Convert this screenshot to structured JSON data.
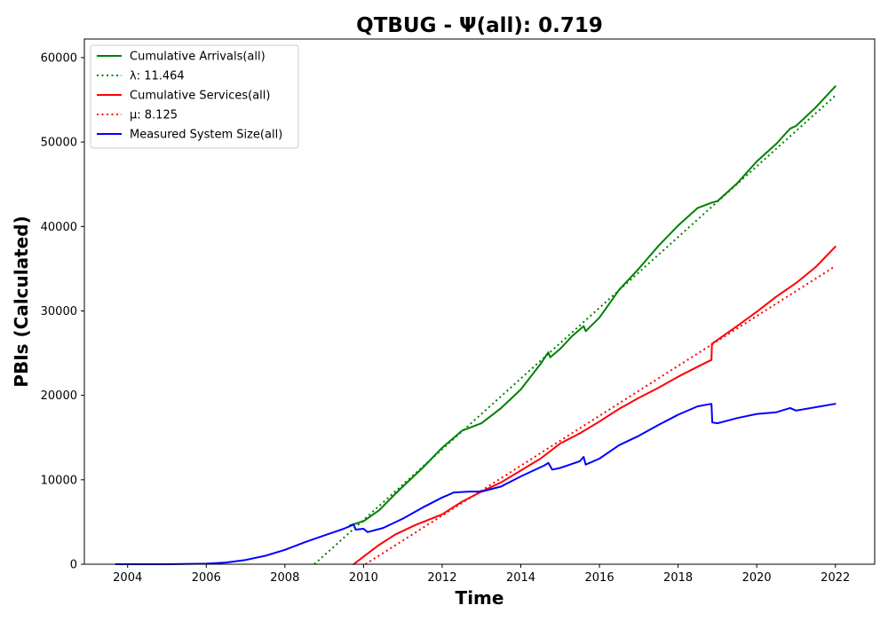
{
  "chart_data": {
    "type": "line",
    "title": "QTBUG -  Ψ(all): 0.719",
    "xlabel": "Time",
    "ylabel": "PBIs (Calculated)",
    "xlim": [
      2002.9,
      2023.0
    ],
    "ylim": [
      0,
      62200
    ],
    "xticks": [
      2004,
      2006,
      2008,
      2010,
      2012,
      2014,
      2016,
      2018,
      2020,
      2022
    ],
    "xtick_labels": [
      "2004",
      "2006",
      "2008",
      "2010",
      "2012",
      "2014",
      "2016",
      "2018",
      "2020",
      "2022"
    ],
    "yticks": [
      0,
      10000,
      20000,
      30000,
      40000,
      50000,
      60000
    ],
    "ytick_labels": [
      "0",
      "10000",
      "20000",
      "30000",
      "40000",
      "50000",
      "60000"
    ],
    "grid": false,
    "legend_position": "top-left",
    "series": [
      {
        "name": "Cumulative Arrivals(all)",
        "color": "#008000",
        "style": "solid",
        "x": [
          2009.65,
          2010.0,
          2010.4,
          2010.8,
          2011.0,
          2011.5,
          2012.0,
          2012.5,
          2013.0,
          2013.5,
          2014.0,
          2014.5,
          2014.7,
          2014.75,
          2015.0,
          2015.3,
          2015.6,
          2015.65,
          2016.0,
          2016.5,
          2017.0,
          2017.5,
          2018.0,
          2018.5,
          2018.85,
          2019.0,
          2019.5,
          2020.0,
          2020.5,
          2020.85,
          2021.0,
          2021.5,
          2022.0
        ],
        "y": [
          4600,
          5100,
          6400,
          8300,
          9200,
          11400,
          13800,
          15800,
          16700,
          18500,
          20700,
          23700,
          25100,
          24500,
          25500,
          27000,
          28200,
          27600,
          29200,
          32500,
          35000,
          37700,
          40100,
          42200,
          42800,
          43000,
          45100,
          47700,
          49800,
          51600,
          51900,
          54100,
          56600
        ]
      },
      {
        "name": "λ: 11.464",
        "color": "#008000",
        "style": "dotted",
        "x": [
          2008.75,
          2022.0
        ],
        "y": [
          0,
          55500
        ]
      },
      {
        "name": "Cumulative Services(all)",
        "color": "#ff0000",
        "style": "solid",
        "x": [
          2009.75,
          2010.0,
          2010.4,
          2010.8,
          2011.3,
          2012.0,
          2012.5,
          2013.0,
          2013.5,
          2014.0,
          2014.5,
          2014.75,
          2015.0,
          2015.5,
          2016.0,
          2016.5,
          2017.0,
          2017.5,
          2018.0,
          2018.5,
          2018.85,
          2018.86,
          2019.5,
          2020.0,
          2020.5,
          2021.0,
          2021.5,
          2022.0
        ],
        "y": [
          0,
          900,
          2300,
          3500,
          4600,
          5900,
          7400,
          8600,
          9700,
          11100,
          12500,
          13400,
          14300,
          15500,
          16900,
          18400,
          19700,
          20900,
          22200,
          23400,
          24200,
          26100,
          28200,
          29900,
          31700,
          33300,
          35200,
          37600
        ]
      },
      {
        "name": "μ: 8.125",
        "color": "#ff0000",
        "style": "dotted",
        "x": [
          2010.05,
          2022.0
        ],
        "y": [
          0,
          35300
        ]
      },
      {
        "name": "Measured System Size(all)",
        "color": "#0000ff",
        "style": "solid",
        "x": [
          2003.7,
          2005.0,
          2006.0,
          2006.5,
          2007.0,
          2007.5,
          2008.0,
          2008.5,
          2009.0,
          2009.5,
          2009.75,
          2009.8,
          2010.0,
          2010.1,
          2010.5,
          2011.0,
          2011.5,
          2012.0,
          2012.3,
          2012.7,
          2013.0,
          2013.5,
          2014.0,
          2014.6,
          2014.7,
          2014.8,
          2015.0,
          2015.5,
          2015.6,
          2015.65,
          2016.0,
          2016.5,
          2017.0,
          2017.5,
          2018.0,
          2018.5,
          2018.85,
          2018.87,
          2019.0,
          2019.5,
          2020.0,
          2020.5,
          2020.85,
          2021.0,
          2021.5,
          2022.0
        ],
        "y": [
          0,
          0,
          60,
          200,
          500,
          1000,
          1700,
          2600,
          3400,
          4200,
          4700,
          4100,
          4200,
          3800,
          4300,
          5400,
          6700,
          7900,
          8500,
          8600,
          8600,
          9200,
          10400,
          11700,
          12000,
          11200,
          11400,
          12200,
          12700,
          11800,
          12500,
          14100,
          15200,
          16500,
          17700,
          18700,
          19000,
          16800,
          16700,
          17300,
          17800,
          18000,
          18500,
          18200,
          18600,
          19000
        ]
      }
    ]
  }
}
